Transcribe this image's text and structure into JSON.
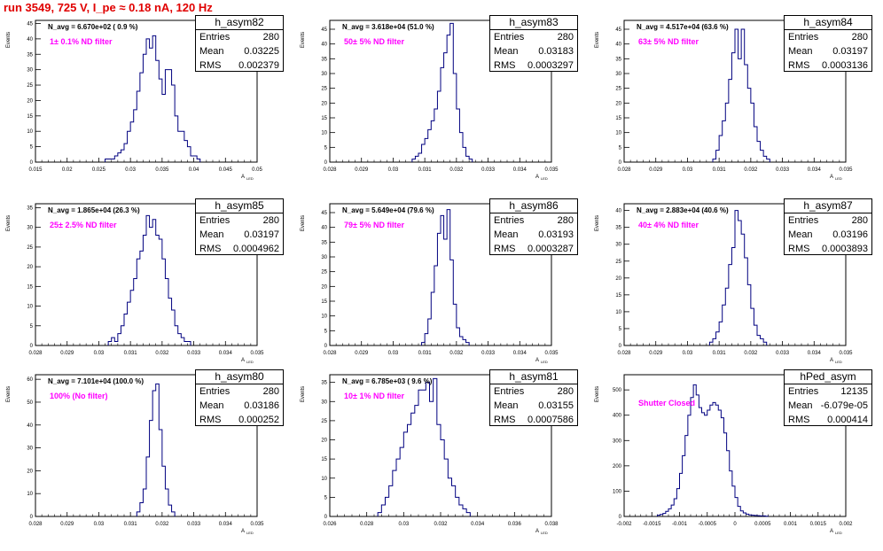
{
  "title": "run 3549,   725 V, I_pe ≈ 0.18 nA, 120 Hz",
  "colors": {
    "title": "#e00000",
    "histogram": "#000080",
    "filter_label": "#ff00ff"
  },
  "stats_labels": {
    "entries": "Entries",
    "mean": "Mean",
    "rms": "RMS"
  },
  "panels": [
    {
      "name": "h_asym82",
      "n_avg": "N_avg = 6.670e+02 ( 0.9 %)",
      "filter": "1± 0.1% ND filter",
      "entries": "280",
      "mean": "0.03225",
      "rms": "0.002379",
      "xlabel": "A",
      "xlabel_sub": "LED",
      "ylabel": "Events",
      "xticks": [
        "0.015",
        "0.02",
        "0.025",
        "0.03",
        "0.035",
        "0.04",
        "0.045",
        "0.05"
      ],
      "yticks": [
        "0",
        "5",
        "10",
        "15",
        "20",
        "25",
        "30",
        "35",
        "40",
        "45"
      ]
    },
    {
      "name": "h_asym83",
      "n_avg": "N_avg = 3.618e+04 (51.0 %)",
      "filter": "50± 5% ND filter",
      "entries": "280",
      "mean": "0.03183",
      "rms": "0.0003297",
      "xlabel": "A",
      "xlabel_sub": "LED",
      "ylabel": "Events",
      "xticks": [
        "0.028",
        "0.029",
        "0.03",
        "0.031",
        "0.032",
        "0.033",
        "0.034",
        "0.035"
      ],
      "yticks": [
        "0",
        "5",
        "10",
        "15",
        "20",
        "25",
        "30",
        "35",
        "40",
        "45"
      ]
    },
    {
      "name": "h_asym84",
      "n_avg": "N_avg = 4.517e+04 (63.6 %)",
      "filter": "63± 5% ND filter",
      "entries": "280",
      "mean": "0.03197",
      "rms": "0.0003136",
      "xlabel": "A",
      "xlabel_sub": "LED",
      "ylabel": "Events",
      "xticks": [
        "0.028",
        "0.029",
        "0.03",
        "0.031",
        "0.032",
        "0.033",
        "0.034",
        "0.035"
      ],
      "yticks": [
        "0",
        "5",
        "10",
        "15",
        "20",
        "25",
        "30",
        "35",
        "40",
        "45"
      ]
    },
    {
      "name": "h_asym85",
      "n_avg": "N_avg = 1.865e+04 (26.3 %)",
      "filter": "25± 2.5% ND filter",
      "entries": "280",
      "mean": "0.03197",
      "rms": "0.0004962",
      "xlabel": "A",
      "xlabel_sub": "LED",
      "ylabel": "Events",
      "xticks": [
        "0.028",
        "0.029",
        "0.03",
        "0.031",
        "0.032",
        "0.033",
        "0.034",
        "0.035"
      ],
      "yticks": [
        "0",
        "5",
        "10",
        "15",
        "20",
        "25",
        "30",
        "35"
      ]
    },
    {
      "name": "h_asym86",
      "n_avg": "N_avg = 5.649e+04 (79.6 %)",
      "filter": "79± 5% ND filter",
      "entries": "280",
      "mean": "0.03193",
      "rms": "0.0003287",
      "xlabel": "A",
      "xlabel_sub": "LED",
      "ylabel": "Events",
      "xticks": [
        "0.028",
        "0.029",
        "0.03",
        "0.031",
        "0.032",
        "0.033",
        "0.034",
        "0.035"
      ],
      "yticks": [
        "0",
        "5",
        "10",
        "15",
        "20",
        "25",
        "30",
        "35",
        "40",
        "45"
      ]
    },
    {
      "name": "h_asym87",
      "n_avg": "N_avg = 2.883e+04 (40.6 %)",
      "filter": "40± 4% ND filter",
      "entries": "280",
      "mean": "0.03196",
      "rms": "0.0003893",
      "xlabel": "A",
      "xlabel_sub": "LED",
      "ylabel": "Events",
      "xticks": [
        "0.028",
        "0.029",
        "0.03",
        "0.031",
        "0.032",
        "0.033",
        "0.034",
        "0.035"
      ],
      "yticks": [
        "0",
        "5",
        "10",
        "15",
        "20",
        "25",
        "30",
        "35",
        "40"
      ]
    },
    {
      "name": "h_asym80",
      "n_avg": "N_avg = 7.101e+04 (100.0 %)",
      "filter": "100% (No filter)",
      "entries": "280",
      "mean": "0.03186",
      "rms": "0.000252",
      "xlabel": "A",
      "xlabel_sub": "LED",
      "ylabel": "Events",
      "xticks": [
        "0.028",
        "0.029",
        "0.03",
        "0.031",
        "0.032",
        "0.033",
        "0.034",
        "0.035"
      ],
      "yticks": [
        "0",
        "10",
        "20",
        "30",
        "40",
        "50",
        "60"
      ]
    },
    {
      "name": "h_asym81",
      "n_avg": "N_avg = 6.785e+03 ( 9.6 %)",
      "filter": "10± 1% ND filter",
      "entries": "280",
      "mean": "0.03155",
      "rms": "0.0007586",
      "xlabel": "A",
      "xlabel_sub": "LED",
      "ylabel": "Events",
      "xticks": [
        "0.026",
        "0.028",
        "0.03",
        "0.032",
        "0.034",
        "0.036",
        "0.038"
      ],
      "yticks": [
        "0",
        "5",
        "10",
        "15",
        "20",
        "25",
        "30",
        "35"
      ]
    },
    {
      "name": "hPed_asym",
      "n_avg": "",
      "filter": "Shutter Closed",
      "entries": "12135",
      "mean": "-6.079e-05",
      "rms": "0.000414",
      "xlabel": "A",
      "xlabel_sub": "LED",
      "ylabel": "Events",
      "xticks": [
        "-0.002",
        "-0.0015",
        "-0.001",
        "-0.0005",
        "0",
        "0.0005",
        "0.001",
        "0.0015",
        "0.002"
      ],
      "yticks": [
        "0",
        "100",
        "200",
        "300",
        "400",
        "500"
      ]
    }
  ],
  "chart_data": [
    {
      "type": "bar",
      "title": "h_asym82",
      "xlim": [
        0.015,
        0.05
      ],
      "ylim": [
        0,
        46
      ],
      "bin_width": 0.0005,
      "x_start": 0.026,
      "values": [
        1,
        1,
        1,
        2,
        3,
        4,
        6,
        10,
        13,
        17,
        23,
        29,
        35,
        40,
        37,
        41,
        33,
        27,
        22,
        30,
        30,
        25,
        15,
        10,
        10,
        7,
        5,
        2,
        2,
        1
      ]
    },
    {
      "type": "bar",
      "title": "h_asym83",
      "xlim": [
        0.028,
        0.035
      ],
      "ylim": [
        0,
        48
      ],
      "bin_width": 0.0001,
      "x_start": 0.0306,
      "values": [
        1,
        2,
        3,
        6,
        8,
        11,
        14,
        18,
        24,
        32,
        37,
        43,
        47,
        30,
        18,
        10,
        5,
        2,
        1
      ]
    },
    {
      "type": "bar",
      "title": "h_asym84",
      "xlim": [
        0.028,
        0.035
      ],
      "ylim": [
        0,
        48
      ],
      "bin_width": 0.0001,
      "x_start": 0.0308,
      "values": [
        1,
        4,
        9,
        14,
        20,
        28,
        37,
        45,
        35,
        45,
        33,
        25,
        20,
        12,
        7,
        4,
        2,
        1
      ]
    },
    {
      "type": "bar",
      "title": "h_asym85",
      "xlim": [
        0.028,
        0.035
      ],
      "ylim": [
        0,
        36
      ],
      "bin_width": 0.0001,
      "x_start": 0.0303,
      "values": [
        1,
        2,
        1,
        3,
        5,
        8,
        11,
        14,
        17,
        22,
        24,
        28,
        33,
        30,
        32,
        28,
        27,
        22,
        17,
        12,
        9,
        5,
        3,
        2,
        1,
        1
      ]
    },
    {
      "type": "bar",
      "title": "h_asym86",
      "xlim": [
        0.028,
        0.035
      ],
      "ylim": [
        0,
        48
      ],
      "bin_width": 0.0001,
      "x_start": 0.0309,
      "values": [
        1,
        4,
        9,
        18,
        27,
        38,
        44,
        36,
        46,
        29,
        14,
        6,
        3,
        2,
        1
      ]
    },
    {
      "type": "bar",
      "title": "h_asym87",
      "xlim": [
        0.028,
        0.035
      ],
      "ylim": [
        0,
        42
      ],
      "bin_width": 0.0001,
      "x_start": 0.0307,
      "values": [
        1,
        2,
        4,
        7,
        12,
        17,
        24,
        29,
        40,
        37,
        33,
        26,
        18,
        11,
        6,
        3,
        2,
        1
      ]
    },
    {
      "type": "bar",
      "title": "h_asym80",
      "xlim": [
        0.028,
        0.035
      ],
      "ylim": [
        0,
        62
      ],
      "bin_width": 0.0001,
      "x_start": 0.0312,
      "values": [
        2,
        6,
        12,
        26,
        42,
        55,
        58,
        38,
        22,
        12,
        5,
        2
      ]
    },
    {
      "type": "bar",
      "title": "h_asym81",
      "xlim": [
        0.026,
        0.038
      ],
      "ylim": [
        0,
        37
      ],
      "bin_width": 0.0002,
      "x_start": 0.0286,
      "values": [
        1,
        3,
        5,
        8,
        12,
        15,
        18,
        22,
        24,
        27,
        29,
        33,
        33,
        35,
        30,
        36,
        24,
        20,
        15,
        10,
        8,
        5,
        3,
        2,
        1
      ]
    },
    {
      "type": "bar",
      "title": "hPed_asym",
      "xlim": [
        -0.002,
        0.002
      ],
      "ylim": [
        0,
        560
      ],
      "bin_width": 5e-05,
      "x_start": -0.0014,
      "values": [
        5,
        8,
        12,
        20,
        30,
        45,
        70,
        110,
        170,
        240,
        320,
        400,
        470,
        520,
        480,
        430,
        410,
        400,
        420,
        440,
        450,
        440,
        420,
        390,
        330,
        260,
        180,
        120,
        75,
        40,
        22,
        14,
        9,
        6,
        5,
        4,
        3,
        2,
        2,
        1
      ]
    }
  ]
}
